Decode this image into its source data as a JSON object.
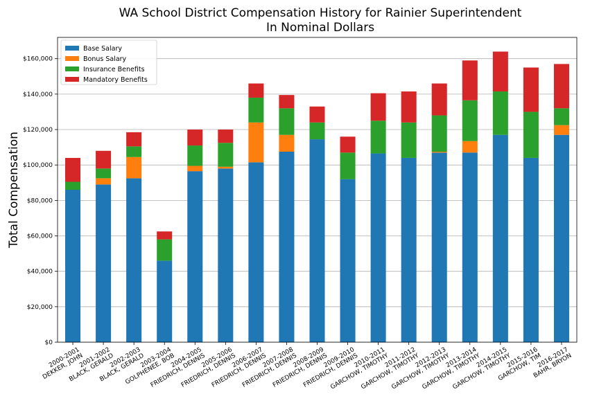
{
  "chart_data": {
    "type": "bar",
    "stacked": true,
    "title": "WA School District Compensation History for Rainier Superintendent",
    "subtitle": "In Nominal Dollars",
    "xlabel": "",
    "ylabel": "Total Compensation",
    "ylim": [
      0,
      172000
    ],
    "grid": "horizontal",
    "legend_position": "top-left",
    "y_ticks": [
      "$0",
      "$20,000",
      "$40,000",
      "$60,000",
      "$80,000",
      "$100,000",
      "$120,000",
      "$140,000",
      "$160,000"
    ],
    "y_tick_values": [
      0,
      20000,
      40000,
      60000,
      80000,
      100000,
      120000,
      140000,
      160000
    ],
    "categories": [
      [
        "2000-2001",
        "DEKKER, JOHN"
      ],
      [
        "2001-2002",
        "BLACK, GERALD"
      ],
      [
        "2002-2003",
        "BLACK, GERALD"
      ],
      [
        "2003-2004",
        "GOLPHENEE, BOB"
      ],
      [
        "2004-2005",
        "FRIEDRICH, DENNIS"
      ],
      [
        "2005-2006",
        "FRIEDRICH, DENNIS"
      ],
      [
        "2006-2007",
        "FRIEDRICH, DENNIS"
      ],
      [
        "2007-2008",
        "FRIEDRICH, DENNIS"
      ],
      [
        "2008-2009",
        "FRIEDRICH, DENNIS"
      ],
      [
        "2009-2010",
        "FRIEDRICH, DENNIS"
      ],
      [
        "2010-2011",
        "GARCHOW, TIMOTHY"
      ],
      [
        "2011-2012",
        "GARCHOW, TIMOTHY"
      ],
      [
        "2012-2013",
        "GARCHOW, TIMOTHY"
      ],
      [
        "2013-2014",
        "GARCHOW, TIMOTHY"
      ],
      [
        "2014-2015",
        "GARCHOW, TIMOTHY"
      ],
      [
        "2015-2016",
        "GARCHOW, TIM"
      ],
      [
        "2016-2017",
        "BAHR, BRYON"
      ]
    ],
    "series": [
      {
        "name": "Base Salary",
        "color": "#1f77b4",
        "values": [
          86000,
          89000,
          92500,
          46000,
          96500,
          98000,
          101500,
          107500,
          114500,
          92000,
          106500,
          104000,
          107000,
          107000,
          117000,
          104000,
          117000
        ]
      },
      {
        "name": "Bonus Salary",
        "color": "#ff7f0e",
        "values": [
          0,
          3500,
          12000,
          0,
          3000,
          1000,
          22500,
          9500,
          0,
          0,
          0,
          0,
          500,
          6500,
          0,
          0,
          5500
        ]
      },
      {
        "name": "Insurance Benefits",
        "color": "#2ca02c",
        "values": [
          4500,
          5500,
          6000,
          12000,
          11500,
          13500,
          14000,
          15000,
          9500,
          15000,
          18500,
          20000,
          20500,
          23000,
          24500,
          26000,
          9500
        ]
      },
      {
        "name": "Mandatory Benefits",
        "color": "#d62728",
        "values": [
          13500,
          10000,
          8000,
          4500,
          9000,
          7500,
          8000,
          7500,
          9000,
          9000,
          15500,
          17500,
          18000,
          22500,
          22500,
          25000,
          25000
        ]
      }
    ]
  }
}
